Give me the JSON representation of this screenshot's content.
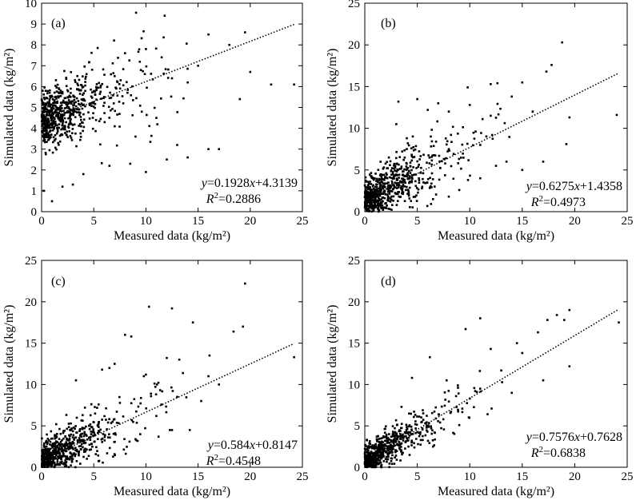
{
  "chart_data": [
    {
      "type": "scatter",
      "panel_label": "(a)",
      "xlabel": "Measured data (kg/m²)",
      "ylabel": "Simulated data (kg/m²)",
      "xlim": [
        0,
        25
      ],
      "ylim": [
        0,
        10
      ],
      "xticks": [
        0,
        5,
        10,
        15,
        20,
        25
      ],
      "yticks": [
        0,
        1,
        2,
        3,
        4,
        5,
        6,
        7,
        8,
        9,
        10
      ],
      "fit": {
        "slope": 0.1928,
        "intercept": 4.3139,
        "x_range": [
          0,
          24.2
        ]
      },
      "equation_text": {
        "y": "y",
        "eq": "=0.1928",
        "x": "x",
        "rest": "+4.3139"
      },
      "r2_text": {
        "R": "R",
        "sup": "2",
        "val": "=0.2886"
      },
      "points": [
        [
          24.2,
          6.1
        ],
        [
          19.5,
          8.6
        ],
        [
          16,
          8.5
        ],
        [
          18,
          8
        ],
        [
          15,
          7
        ],
        [
          12.5,
          6.4
        ],
        [
          10,
          7.8
        ],
        [
          8,
          7.6
        ],
        [
          19,
          5.4
        ],
        [
          14,
          6.2
        ],
        [
          11,
          4.5
        ],
        [
          13,
          3.2
        ],
        [
          9,
          3.6
        ],
        [
          16,
          3.0
        ],
        [
          0.3,
          5.4
        ],
        [
          0.2,
          1.0
        ],
        [
          1,
          0.5
        ],
        [
          2,
          1.2
        ],
        [
          3,
          5.3
        ],
        [
          4,
          5.4
        ],
        [
          5,
          5.2
        ],
        [
          6,
          5.5
        ],
        [
          7,
          6.5
        ],
        [
          6.5,
          2.2
        ],
        [
          4,
          1.8
        ],
        [
          3,
          1.3
        ],
        [
          8.5,
          2.3
        ],
        [
          10,
          1.9
        ],
        [
          12,
          2.5
        ],
        [
          14,
          2.6
        ],
        [
          17,
          3.0
        ],
        [
          20,
          6.7
        ],
        [
          22,
          6.1
        ],
        [
          0.1,
          5.8
        ],
        [
          0.5,
          4.3
        ]
      ],
      "scatter_n": 650,
      "scatter_sd": 0.95,
      "scatter_x_scale": 2.8
    },
    {
      "type": "scatter",
      "panel_label": "(b)",
      "xlabel": "Measured data (kg/m²)",
      "ylabel": "Simulated data (kg/m²)",
      "xlim": [
        0,
        25
      ],
      "ylim": [
        0,
        25
      ],
      "xticks": [
        0,
        5,
        10,
        15,
        20,
        25
      ],
      "yticks": [
        0,
        5,
        10,
        15,
        20,
        25
      ],
      "fit": {
        "slope": 0.6275,
        "intercept": 1.4358,
        "x_range": [
          0,
          24.2
        ]
      },
      "equation_text": {
        "y": "y",
        "eq": "=0.6275",
        "x": "x",
        "rest": "+1.4358"
      },
      "r2_text": {
        "R": "R",
        "sup": "2",
        "val": "=0.4973"
      },
      "points": [
        [
          18.8,
          20.3
        ],
        [
          24,
          11.6
        ],
        [
          19.5,
          11.3
        ],
        [
          19.2,
          8.1
        ],
        [
          17.3,
          16.8
        ],
        [
          17.8,
          17.6
        ],
        [
          15,
          15.5
        ],
        [
          12,
          15.3
        ],
        [
          9.8,
          14.9
        ],
        [
          3.2,
          13.2
        ],
        [
          14,
          13.8
        ],
        [
          12,
          11.5
        ],
        [
          16,
          12
        ],
        [
          11,
          8
        ],
        [
          13.5,
          6
        ],
        [
          17,
          6
        ],
        [
          15,
          5
        ],
        [
          12.5,
          5.5
        ],
        [
          8,
          12
        ],
        [
          10,
          12.8
        ],
        [
          6,
          12.2
        ],
        [
          5,
          13.5
        ],
        [
          7,
          13
        ],
        [
          9,
          2.6
        ],
        [
          11,
          4
        ],
        [
          6.5,
          1.5
        ],
        [
          8,
          1.8
        ],
        [
          4,
          8.8
        ],
        [
          3,
          10.5
        ]
      ],
      "scatter_n": 650,
      "scatter_sd": 1.9,
      "scatter_x_scale": 2.8
    },
    {
      "type": "scatter",
      "panel_label": "(c)",
      "xlabel": "Measured data (kg/m²)",
      "ylabel": "Simulated data (kg/m²)",
      "xlim": [
        0,
        25
      ],
      "ylim": [
        0,
        25
      ],
      "xticks": [
        0,
        5,
        10,
        15,
        20,
        25
      ],
      "yticks": [
        0,
        5,
        10,
        15,
        20,
        25
      ],
      "fit": {
        "slope": 0.584,
        "intercept": 0.8147,
        "x_range": [
          0,
          24.2
        ]
      },
      "equation_text": {
        "y": "y",
        "eq": "=0.584",
        "x": "x",
        "rest": "+0.8147"
      },
      "r2_text": {
        "R": "R",
        "sup": "2",
        "val": "=0.4548"
      },
      "points": [
        [
          19.5,
          22.2
        ],
        [
          24.2,
          13.3
        ],
        [
          19.3,
          17
        ],
        [
          18.4,
          16.4
        ],
        [
          12.5,
          19.2
        ],
        [
          10.3,
          19.4
        ],
        [
          14.5,
          17.5
        ],
        [
          8,
          16
        ],
        [
          8.6,
          15.8
        ],
        [
          12,
          13.2
        ],
        [
          13.2,
          13
        ],
        [
          16.1,
          13.5
        ],
        [
          10,
          11.2
        ],
        [
          9.8,
          11
        ],
        [
          16,
          11
        ],
        [
          17,
          10
        ],
        [
          13,
          8.5
        ],
        [
          15.3,
          8
        ],
        [
          11,
          6.2
        ],
        [
          14.2,
          4.5
        ],
        [
          12.5,
          4.5
        ],
        [
          9,
          3.4
        ],
        [
          6.5,
          12
        ],
        [
          7,
          12.5
        ],
        [
          5.8,
          11.8
        ],
        [
          3.3,
          10.5
        ]
      ],
      "scatter_n": 650,
      "scatter_sd": 1.7,
      "scatter_x_scale": 2.8
    },
    {
      "type": "scatter",
      "panel_label": "(d)",
      "xlabel": "Measured data (kg/m²)",
      "ylabel": "Simulated data (kg/m²)",
      "xlim": [
        0,
        25
      ],
      "ylim": [
        0,
        25
      ],
      "xticks": [
        0,
        5,
        10,
        15,
        20,
        25
      ],
      "yticks": [
        0,
        5,
        10,
        15,
        20,
        25
      ],
      "fit": {
        "slope": 0.7576,
        "intercept": 0.7628,
        "x_range": [
          0,
          24.2
        ]
      },
      "equation_text": {
        "y": "y",
        "eq": "=0.7576",
        "x": "x",
        "rest": "+0.7628"
      },
      "r2_text": {
        "R": "R",
        "sup": "2",
        "val": "=0.6838"
      },
      "points": [
        [
          19.5,
          19
        ],
        [
          24.2,
          17.5
        ],
        [
          18.3,
          18.4
        ],
        [
          19,
          17.8
        ],
        [
          17.4,
          17.8
        ],
        [
          16.5,
          16.3
        ],
        [
          14.5,
          15
        ],
        [
          11,
          18
        ],
        [
          17,
          10.5
        ],
        [
          19.5,
          12.2
        ],
        [
          12,
          14.3
        ],
        [
          15,
          13.8
        ],
        [
          13,
          11.7
        ],
        [
          14,
          9
        ],
        [
          10,
          8.3
        ],
        [
          11,
          9.5
        ],
        [
          8.7,
          8.6
        ],
        [
          9.6,
          16.7
        ],
        [
          7.8,
          10.5
        ],
        [
          6.2,
          13.3
        ],
        [
          4.5,
          10.8
        ],
        [
          3.5,
          7.3
        ],
        [
          9,
          5.1
        ],
        [
          6.5,
          2.5
        ]
      ],
      "scatter_n": 650,
      "scatter_sd": 1.3,
      "scatter_x_scale": 2.6
    }
  ]
}
